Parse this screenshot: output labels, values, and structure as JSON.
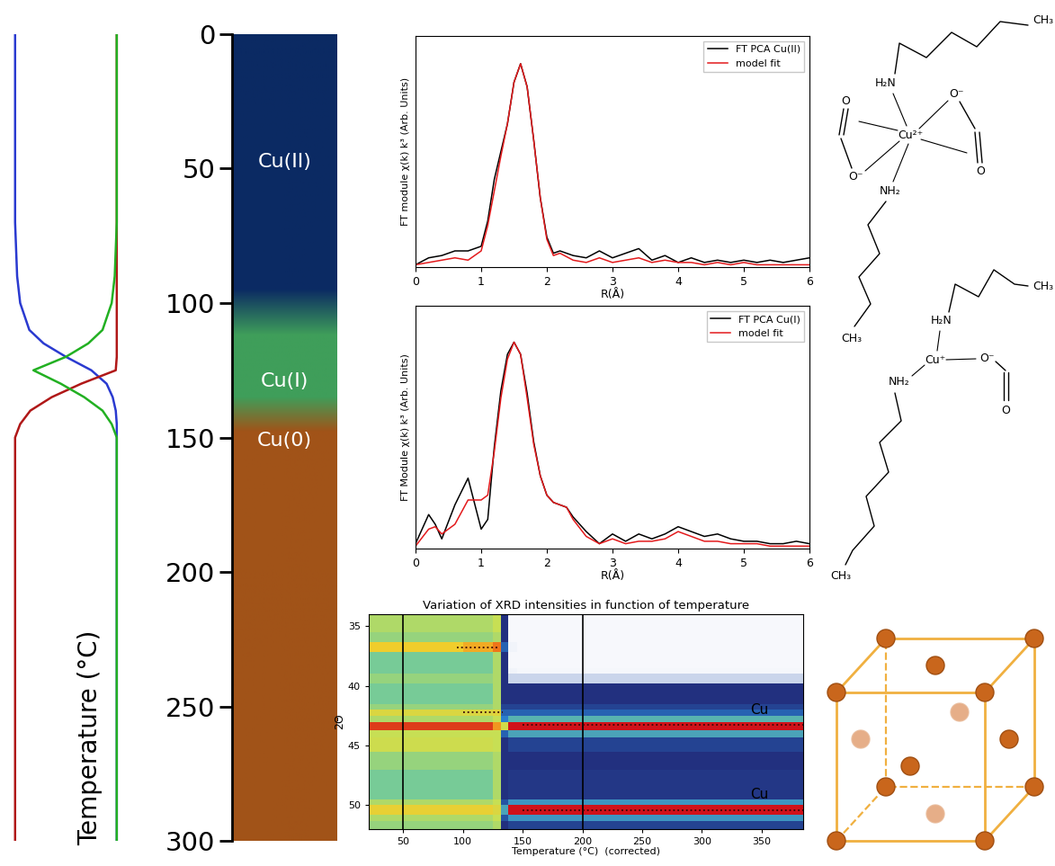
{
  "chart_data": [
    {
      "type": "line",
      "y": [
        0,
        70,
        90,
        100,
        110,
        115,
        120,
        125,
        130,
        135,
        140,
        145,
        150,
        200,
        300
      ],
      "series": [
        {
          "color": "#2a3ad0",
          "values": [
            1,
            1,
            0.98,
            0.95,
            0.86,
            0.72,
            0.5,
            0.25,
            0.1,
            0.04,
            0.01,
            0,
            0,
            0,
            0
          ]
        },
        {
          "color": "#b01818",
          "values": [
            0,
            0,
            0,
            0,
            0,
            0,
            0,
            0.01,
            0.35,
            0.64,
            0.85,
            0.95,
            1,
            1,
            1
          ]
        },
        {
          "color": "#22b022",
          "values": [
            0,
            0,
            0.02,
            0.05,
            0.14,
            0.28,
            0.5,
            0.82,
            0.55,
            0.32,
            0.14,
            0.05,
            0,
            0,
            0
          ]
        }
      ],
      "xlim": [
        1.06,
        -0.09
      ],
      "ylim": [
        300,
        0
      ],
      "tick_labels": false
    },
    {
      "type": "band",
      "ylabel": "Temperature (°C)",
      "ylim": [
        300,
        0
      ],
      "yticks": [
        0,
        50,
        100,
        150,
        200,
        250,
        300
      ],
      "phases": [
        {
          "label": "Cu(II)",
          "color": "#0b2a63",
          "range": [
            0,
            95
          ]
        },
        {
          "label": "Cu(I)",
          "color": "#3f9e5a",
          "range": [
            112,
            135
          ]
        },
        {
          "label": "Cu(0)",
          "color": "#a15318",
          "range": [
            148,
            300
          ]
        }
      ]
    },
    {
      "type": "line",
      "x": [
        0,
        0.2,
        0.4,
        0.6,
        0.8,
        1.0,
        1.1,
        1.2,
        1.3,
        1.4,
        1.5,
        1.6,
        1.7,
        1.8,
        1.9,
        2.0,
        2.1,
        2.2,
        2.4,
        2.6,
        2.8,
        3.0,
        3.2,
        3.4,
        3.6,
        3.8,
        4.0,
        4.2,
        4.4,
        4.6,
        4.8,
        5.0,
        5.2,
        5.4,
        5.6,
        5.8,
        6.0
      ],
      "series": [
        {
          "name": "FT PCA Cu(II)",
          "color": "#000000",
          "values": [
            0.01,
            0.04,
            0.05,
            0.07,
            0.07,
            0.09,
            0.2,
            0.38,
            0.5,
            0.62,
            0.8,
            0.88,
            0.78,
            0.55,
            0.3,
            0.13,
            0.06,
            0.07,
            0.05,
            0.04,
            0.07,
            0.04,
            0.06,
            0.08,
            0.03,
            0.05,
            0.02,
            0.04,
            0.02,
            0.03,
            0.02,
            0.03,
            0.02,
            0.03,
            0.02,
            0.03,
            0.04
          ]
        },
        {
          "name": "model fit",
          "color": "#e31a1c",
          "values": [
            0.01,
            0.02,
            0.03,
            0.04,
            0.03,
            0.07,
            0.18,
            0.33,
            0.48,
            0.62,
            0.8,
            0.88,
            0.78,
            0.55,
            0.3,
            0.12,
            0.05,
            0.06,
            0.03,
            0.02,
            0.04,
            0.02,
            0.03,
            0.04,
            0.02,
            0.03,
            0.02,
            0.02,
            0.01,
            0.02,
            0.01,
            0.02,
            0.01,
            0.01,
            0.01,
            0.01,
            0.01
          ]
        }
      ],
      "xlabel": "R(Å)",
      "ylabel": "FT module χ(k) k³ (Arb. Units)",
      "xlim": [
        0,
        6
      ],
      "xticks": [
        0,
        1,
        2,
        3,
        4,
        5,
        6
      ],
      "ylim": [
        0,
        1
      ],
      "tick_labels": "x",
      "legend": "upper right"
    },
    {
      "type": "line",
      "x": [
        0,
        0.2,
        0.3,
        0.4,
        0.6,
        0.8,
        1.0,
        1.1,
        1.2,
        1.3,
        1.4,
        1.5,
        1.6,
        1.7,
        1.8,
        1.9,
        2.0,
        2.1,
        2.2,
        2.3,
        2.4,
        2.6,
        2.8,
        3.0,
        3.2,
        3.4,
        3.6,
        3.8,
        4.0,
        4.2,
        4.4,
        4.6,
        4.8,
        5.0,
        5.2,
        5.4,
        5.6,
        5.8,
        6.0
      ],
      "series": [
        {
          "name": "FT PCA Cu(I)",
          "color": "#000000",
          "values": [
            0.02,
            0.14,
            0.1,
            0.04,
            0.18,
            0.29,
            0.08,
            0.12,
            0.42,
            0.65,
            0.8,
            0.85,
            0.8,
            0.64,
            0.44,
            0.3,
            0.22,
            0.19,
            0.18,
            0.17,
            0.13,
            0.07,
            0.02,
            0.06,
            0.03,
            0.06,
            0.04,
            0.06,
            0.09,
            0.07,
            0.05,
            0.06,
            0.04,
            0.03,
            0.03,
            0.02,
            0.02,
            0.03,
            0.02
          ]
        },
        {
          "name": "model fit",
          "color": "#e31a1c",
          "values": [
            0.01,
            0.08,
            0.09,
            0.06,
            0.1,
            0.2,
            0.2,
            0.22,
            0.4,
            0.62,
            0.78,
            0.85,
            0.8,
            0.62,
            0.43,
            0.3,
            0.22,
            0.19,
            0.18,
            0.17,
            0.12,
            0.05,
            0.02,
            0.04,
            0.02,
            0.03,
            0.03,
            0.04,
            0.07,
            0.05,
            0.03,
            0.03,
            0.02,
            0.02,
            0.02,
            0.01,
            0.01,
            0.01,
            0.01
          ]
        }
      ],
      "xlabel": "R(Å)",
      "ylabel": "FT Module χ(k) k³ (Arb. Units)",
      "xlim": [
        0,
        6
      ],
      "xticks": [
        0,
        1,
        2,
        3,
        4,
        5,
        6
      ],
      "ylim": [
        0,
        1
      ],
      "tick_labels": "x",
      "legend": "upper right"
    },
    {
      "type": "heatmap",
      "title": "Variation of XRD intensities in function of temperature",
      "xlabel": "Temperature (°C)  (corrected)",
      "ylabel": "2Θ",
      "xlim": [
        21,
        385
      ],
      "xticks": [
        50,
        100,
        150,
        200,
        250,
        300,
        350
      ],
      "ylim": [
        52,
        34
      ],
      "yticks": [
        35,
        40,
        45,
        50
      ],
      "x_edges": [
        21,
        50,
        100,
        125,
        132,
        138,
        145,
        160,
        200,
        385
      ],
      "y_edges": [
        34,
        35.5,
        36.3,
        37.2,
        38.5,
        39.0,
        39.8,
        41.5,
        42.0,
        42.5,
        43.0,
        43.7,
        44.3,
        45.5,
        47.0,
        49.5,
        50.0,
        50.8,
        51.3,
        52
      ],
      "cells": [
        [
          0.7,
          0.7,
          0.7,
          0.72,
          0.42,
          0.05,
          0.05,
          0.05,
          0.05
        ],
        [
          0.68,
          0.68,
          0.68,
          0.7,
          0.42,
          0.05,
          0.05,
          0.05,
          0.05
        ],
        [
          0.84,
          0.84,
          0.88,
          0.93,
          0.5,
          0.08,
          0.05,
          0.05,
          0.05
        ],
        [
          0.66,
          0.66,
          0.66,
          0.7,
          0.42,
          0.05,
          0.05,
          0.05,
          0.05
        ],
        [
          0.66,
          0.66,
          0.66,
          0.7,
          0.42,
          0.08,
          0.06,
          0.06,
          0.06
        ],
        [
          0.68,
          0.68,
          0.68,
          0.7,
          0.42,
          0.22,
          0.22,
          0.22,
          0.22
        ],
        [
          0.66,
          0.66,
          0.66,
          0.7,
          0.42,
          0.42,
          0.42,
          0.42,
          0.42
        ],
        [
          0.68,
          0.68,
          0.68,
          0.7,
          0.45,
          0.45,
          0.45,
          0.45,
          0.45
        ],
        [
          0.78,
          0.78,
          0.78,
          0.8,
          0.5,
          0.5,
          0.5,
          0.5,
          0.5
        ],
        [
          0.7,
          0.7,
          0.7,
          0.72,
          0.55,
          0.62,
          0.62,
          0.62,
          0.62
        ],
        [
          0.97,
          0.97,
          0.97,
          0.9,
          0.75,
          1.0,
          1.0,
          1.0,
          1.0
        ],
        [
          0.72,
          0.72,
          0.72,
          0.72,
          0.5,
          0.6,
          0.6,
          0.6,
          0.6
        ],
        [
          0.74,
          0.74,
          0.74,
          0.72,
          0.42,
          0.45,
          0.45,
          0.45,
          0.45
        ],
        [
          0.68,
          0.68,
          0.68,
          0.7,
          0.42,
          0.42,
          0.42,
          0.42,
          0.42
        ],
        [
          0.66,
          0.66,
          0.66,
          0.7,
          0.42,
          0.43,
          0.43,
          0.43,
          0.43
        ],
        [
          0.7,
          0.7,
          0.7,
          0.72,
          0.48,
          0.58,
          0.58,
          0.58,
          0.58
        ],
        [
          0.82,
          0.82,
          0.82,
          0.78,
          0.6,
          1.0,
          1.0,
          1.0,
          1.0
        ],
        [
          0.7,
          0.7,
          0.7,
          0.72,
          0.48,
          0.58,
          0.58,
          0.58,
          0.58
        ],
        [
          0.68,
          0.68,
          0.68,
          0.7,
          0.42,
          0.45,
          0.45,
          0.45,
          0.45
        ]
      ],
      "color_range": [
        0,
        1
      ],
      "vertical_lines": [
        50,
        200
      ],
      "peak_tracks": [
        {
          "two_theta": 36.8,
          "from": 95,
          "to": 130
        },
        {
          "two_theta": 42.2,
          "from": 100,
          "to": 133
        },
        {
          "two_theta": 43.3,
          "from": 150,
          "to": 385
        },
        {
          "two_theta": 50.4,
          "from": 150,
          "to": 385
        }
      ],
      "peak_labels": [
        {
          "label": "Cu",
          "two_theta": 43.3
        },
        {
          "label": "Cu",
          "two_theta": 50.4
        }
      ]
    }
  ],
  "structures": [
    {
      "labels": [
        "CH₃",
        "H₂N",
        "Cu²⁺",
        "O",
        "O⁻",
        "O⁻",
        "O",
        "NH₂",
        "CH₃"
      ]
    },
    {
      "labels": [
        "CH₃",
        "H₂N",
        "Cu⁺",
        "O⁻",
        "O",
        "NH₂",
        "CH₃"
      ]
    }
  ]
}
